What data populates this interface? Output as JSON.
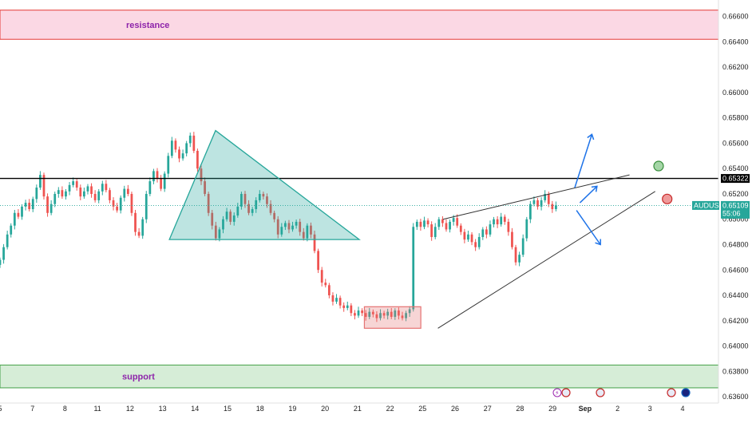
{
  "chart_data": {
    "type": "candlestick",
    "symbol": "AUDUSD",
    "y_ticks": [
      "0.66600",
      "0.66400",
      "0.66200",
      "0.66000",
      "0.65800",
      "0.65600",
      "0.65400",
      "0.65200",
      "0.65000",
      "0.64800",
      "0.64600",
      "0.64400",
      "0.64200",
      "0.64000",
      "0.63800",
      "0.63600"
    ],
    "y_tick_values": [
      0.666,
      0.664,
      0.662,
      0.66,
      0.658,
      0.656,
      0.654,
      0.652,
      0.65,
      0.648,
      0.646,
      0.644,
      0.642,
      0.64,
      0.638,
      0.636
    ],
    "ylim": [
      0.6355,
      0.6673
    ],
    "x_ticks": [
      "5",
      "7",
      "8",
      "11",
      "12",
      "13",
      "14",
      "15",
      "18",
      "19",
      "20",
      "21",
      "22",
      "25",
      "26",
      "27",
      "28",
      "29",
      "Sep",
      "2",
      "3",
      "4"
    ],
    "x_tick_pos": [
      0,
      1.9,
      3.8,
      5.7,
      7.6,
      9.5,
      11.4,
      13.3,
      15.2,
      17.1,
      19.0,
      20.9,
      22.8,
      24.7,
      26.6,
      28.5,
      30.4,
      32.3,
      34.2,
      36.1,
      38.0,
      39.9
    ],
    "xlim": [
      0,
      42
    ],
    "resistance": {
      "label": "resistance",
      "range": [
        0.6642,
        0.6665
      ],
      "color": "#f48fb1"
    },
    "support": {
      "label": "support",
      "range": [
        0.6367,
        0.6385
      ],
      "color": "#a5d6a7"
    },
    "key_level": {
      "value": "0.65322",
      "price": 0.65322,
      "color": "#000000"
    },
    "current_price": {
      "symbol": "AUDUSD",
      "value": "0.65109",
      "countdown": "55:06",
      "price": 0.65109,
      "color": "#26a69a"
    },
    "candles_close": [
      0.6468,
      0.6478,
      0.6488,
      0.6495,
      0.6505,
      0.6502,
      0.651,
      0.6513,
      0.6508,
      0.6516,
      0.6525,
      0.6535,
      0.6518,
      0.6505,
      0.6512,
      0.652,
      0.6523,
      0.6518,
      0.6522,
      0.6527,
      0.653,
      0.6525,
      0.6518,
      0.6522,
      0.6526,
      0.652,
      0.6515,
      0.6522,
      0.6528,
      0.6523,
      0.6515,
      0.651,
      0.6507,
      0.6517,
      0.6524,
      0.652,
      0.6505,
      0.649,
      0.6487,
      0.65,
      0.652,
      0.653,
      0.6538,
      0.6532,
      0.6524,
      0.6536,
      0.655,
      0.6562,
      0.6555,
      0.6548,
      0.6552,
      0.656,
      0.6566,
      0.6554,
      0.654,
      0.653,
      0.652,
      0.6505,
      0.6495,
      0.6485,
      0.6492,
      0.65,
      0.6506,
      0.6498,
      0.6503,
      0.651,
      0.652,
      0.6512,
      0.6505,
      0.6508,
      0.6515,
      0.652,
      0.6518,
      0.6512,
      0.6505,
      0.65,
      0.6488,
      0.6494,
      0.6497,
      0.6492,
      0.6495,
      0.6498,
      0.649,
      0.6485,
      0.6495,
      0.6488,
      0.6475,
      0.646,
      0.645,
      0.6448,
      0.644,
      0.6435,
      0.6438,
      0.6432,
      0.643,
      0.6432,
      0.6426,
      0.6424,
      0.6428,
      0.6426,
      0.6423,
      0.6427,
      0.6425,
      0.6422,
      0.6426,
      0.6424,
      0.6427,
      0.6423,
      0.6428,
      0.6424,
      0.6422,
      0.6426,
      0.6429,
      0.6494,
      0.6498,
      0.6494,
      0.6499,
      0.6496,
      0.6486,
      0.6494,
      0.65,
      0.6497,
      0.6492,
      0.6498,
      0.6501,
      0.6495,
      0.649,
      0.6484,
      0.6488,
      0.6482,
      0.6478,
      0.6486,
      0.6492,
      0.6488,
      0.6496,
      0.65,
      0.6496,
      0.6502,
      0.6498,
      0.649,
      0.6478,
      0.6466,
      0.6472,
      0.6485,
      0.65,
      0.6512,
      0.6515,
      0.651,
      0.6515,
      0.652,
      0.6512,
      0.6508,
      0.6511
    ],
    "candle_range": [
      0.0,
      32.5
    ],
    "patterns": {
      "triangle": {
        "color": "#26a69a"
      },
      "consolidation_box": {
        "x": [
          21.3,
          24.6
        ],
        "y": [
          0.6414,
          0.6431
        ],
        "color": "#e57373"
      },
      "rising_wedge": {
        "color": "#333333"
      },
      "scenarios": {
        "bull_target": "green",
        "bear_target": "red"
      }
    }
  }
}
